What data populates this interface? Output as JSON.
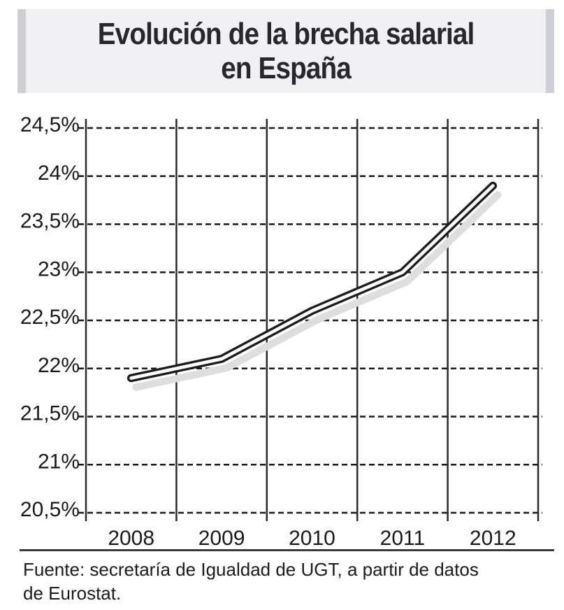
{
  "title": {
    "line1": "Evolución de la brecha salarial",
    "line2": "en España"
  },
  "source": {
    "line1": "Fuente: secretaría de Igualdad de UGT, a partir de datos",
    "line2": "de Eurostat."
  },
  "chart_data": {
    "type": "line",
    "title": "Evolución de la brecha salarial en España",
    "categories": [
      "2008",
      "2009",
      "2010",
      "2011",
      "2012"
    ],
    "series": [
      {
        "name": "Brecha salarial",
        "values": [
          21.9,
          22.1,
          22.6,
          23.0,
          23.9
        ]
      }
    ],
    "xlabel": "",
    "ylabel": "",
    "ylim": [
      20.5,
      24.5
    ],
    "ytick_step": 0.5,
    "yticks": [
      {
        "value": 24.5,
        "label": "24,5%"
      },
      {
        "value": 24.0,
        "label": "24%"
      },
      {
        "value": 23.5,
        "label": "23,5%"
      },
      {
        "value": 23.0,
        "label": "23%"
      },
      {
        "value": 22.5,
        "label": "22,5%"
      },
      {
        "value": 22.0,
        "label": "22%"
      },
      {
        "value": 21.5,
        "label": "21,5%"
      },
      {
        "value": 21.0,
        "label": "21%"
      },
      {
        "value": 20.5,
        "label": "20,5%"
      }
    ],
    "grid": "horizontal-dotted, vertical-solid",
    "legend": "none",
    "style": {
      "line_outline_color": "#1c1c1c",
      "line_inner_color": "#ffffff",
      "shadow_color": "#dedede",
      "grid_color": "#1a1a1a",
      "axis_text_color": "#1a1a1a"
    }
  }
}
